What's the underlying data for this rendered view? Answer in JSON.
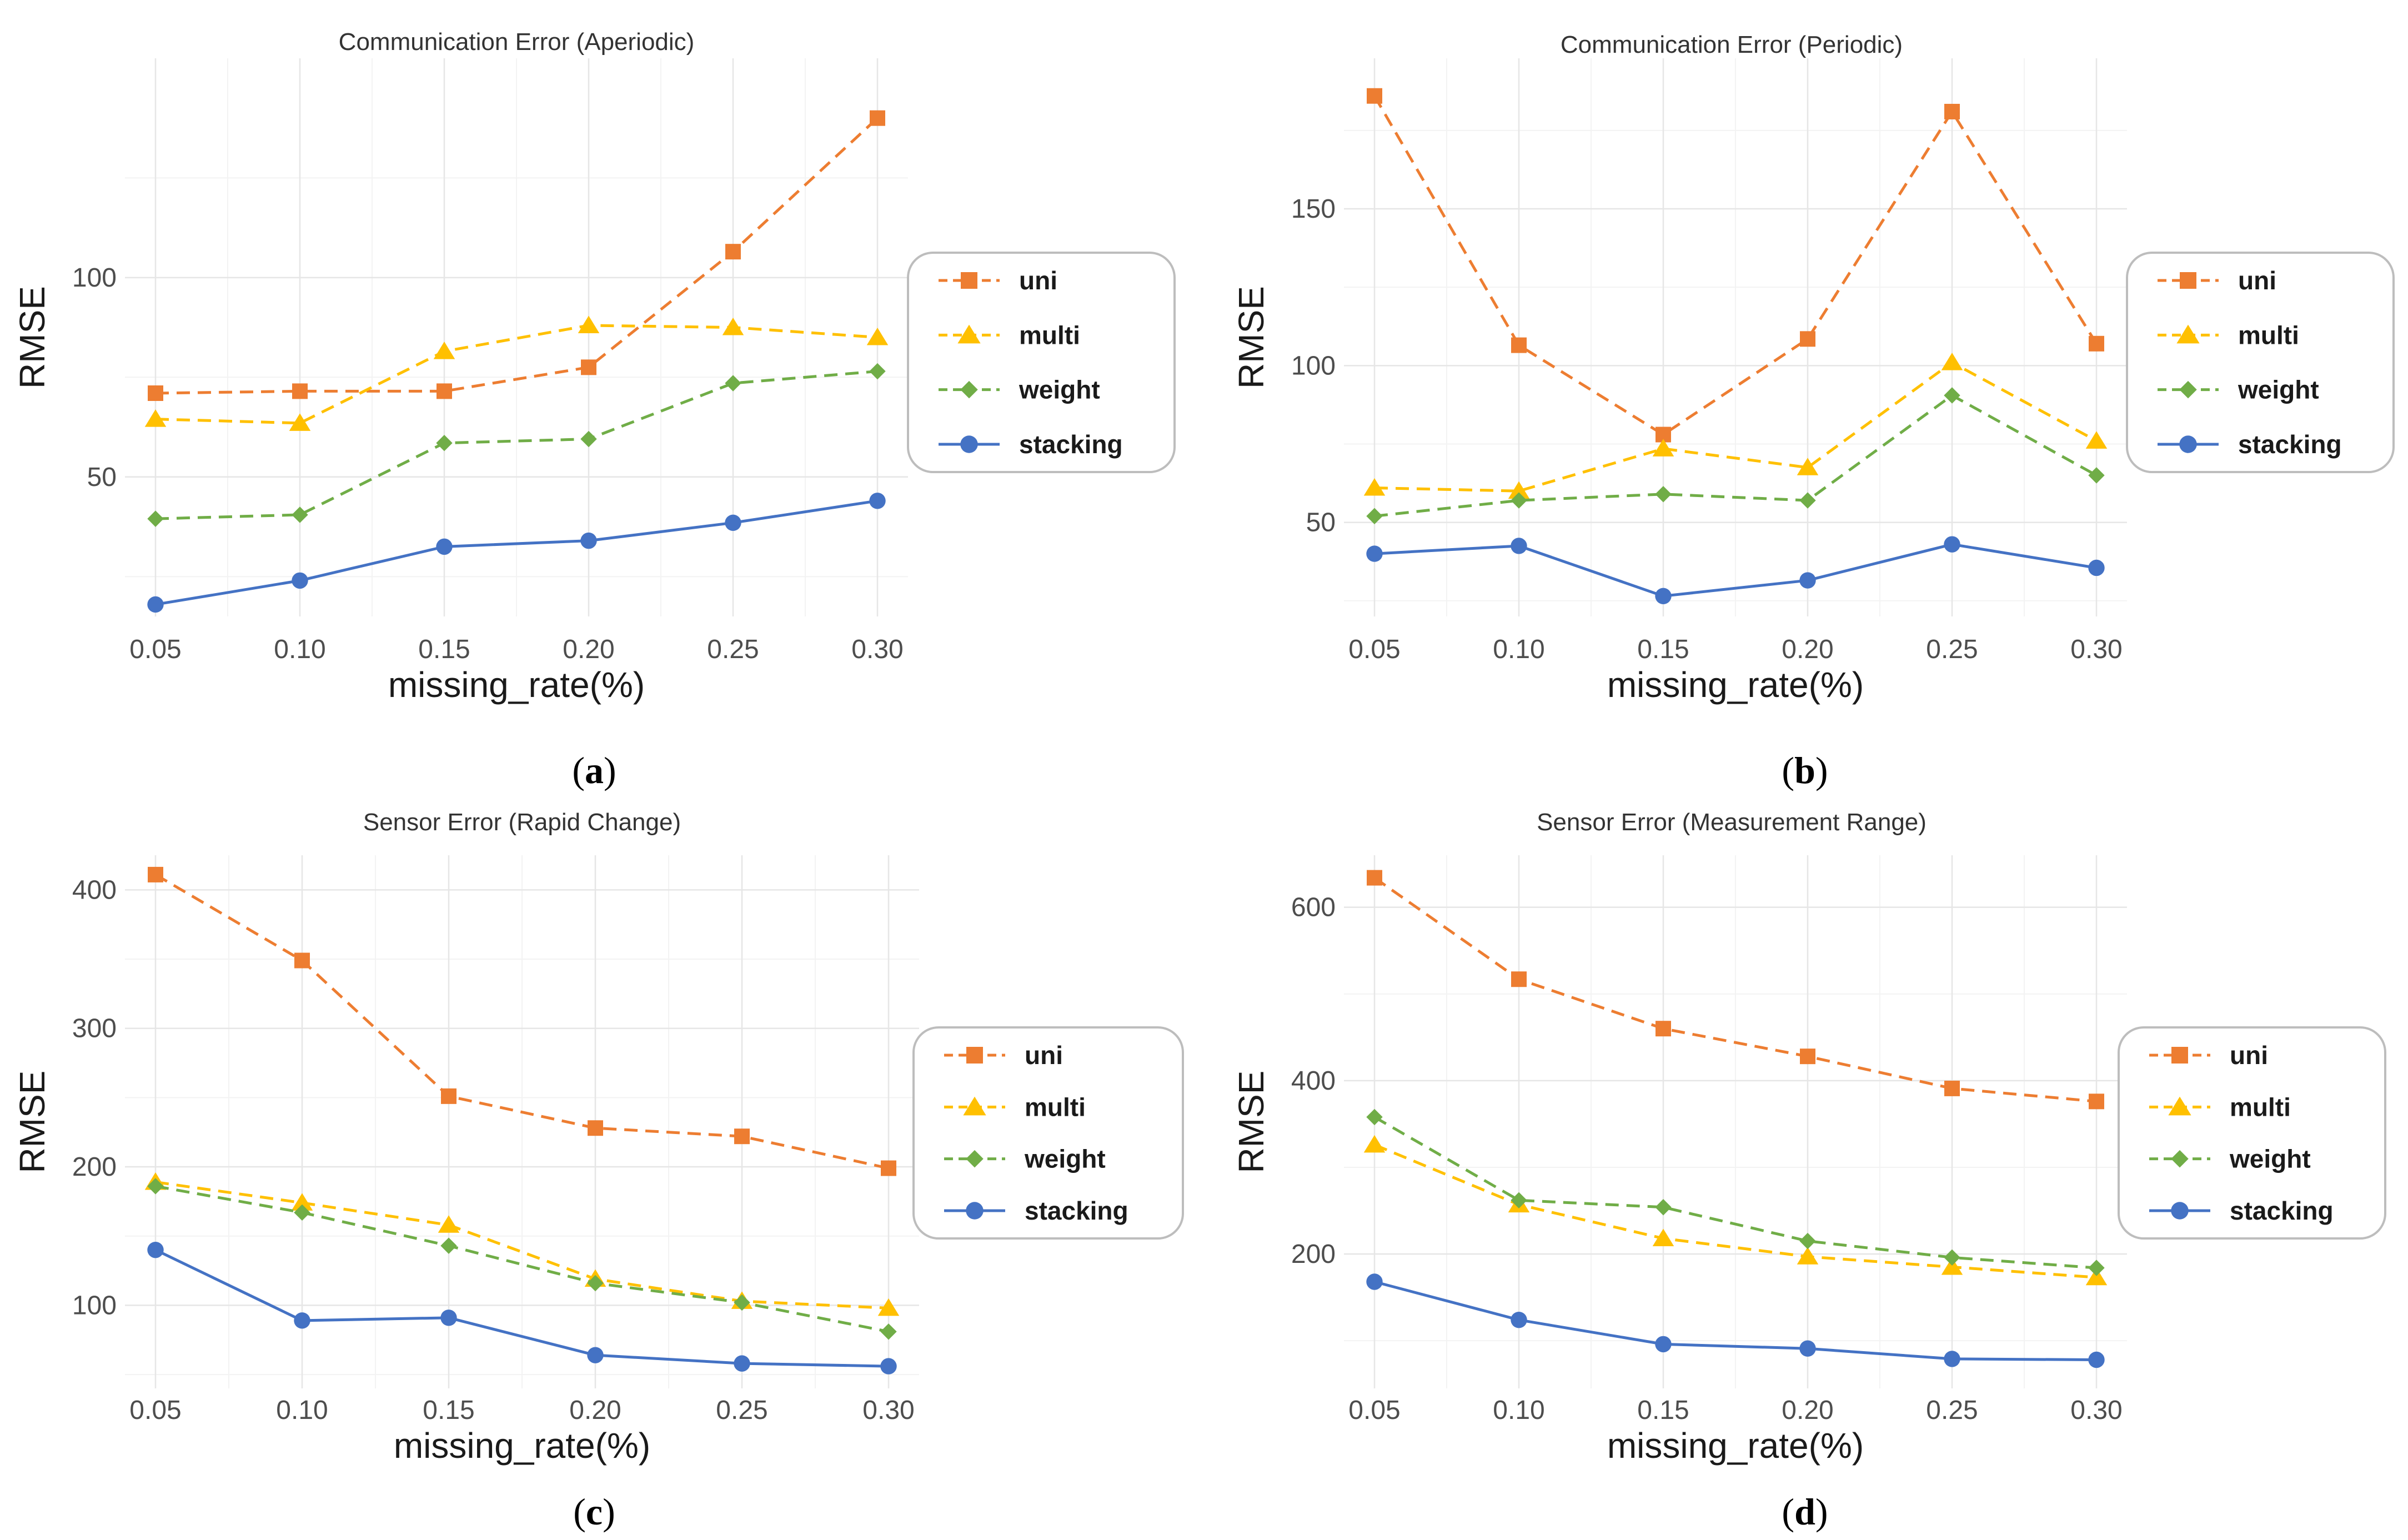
{
  "x_label": "missing_rate(%)",
  "y_label": "RMSE",
  "chart_data": [
    {
      "type": "line",
      "title": "Communication Error (Aperiodic)",
      "caption": "a",
      "categories": [
        "0.05",
        "0.10",
        "0.15",
        "0.20",
        "0.25",
        "0.30"
      ],
      "yticks": [
        50,
        100
      ],
      "ylim": [
        15,
        155
      ],
      "series": [
        {
          "name": "uni",
          "color": "#ED7D31",
          "marker": "square",
          "dash": true,
          "values": [
            71,
            71.5,
            71.5,
            77.5,
            106.5,
            140
          ]
        },
        {
          "name": "multi",
          "color": "#FFC000",
          "marker": "triangle",
          "dash": true,
          "values": [
            64.5,
            63.5,
            81.5,
            88,
            87.5,
            85
          ]
        },
        {
          "name": "weight",
          "color": "#70AD47",
          "marker": "diamond",
          "dash": true,
          "values": [
            39.5,
            40.5,
            58.5,
            59.5,
            73.5,
            76.5
          ]
        },
        {
          "name": "stacking",
          "color": "#4472C4",
          "marker": "circle",
          "dash": false,
          "values": [
            18,
            24,
            32.5,
            34,
            38.5,
            44
          ]
        }
      ]
    },
    {
      "type": "line",
      "title": "Communication Error (Periodic)",
      "caption": "b",
      "categories": [
        "0.05",
        "0.10",
        "0.15",
        "0.20",
        "0.25",
        "0.30"
      ],
      "yticks": [
        50,
        100,
        150
      ],
      "ylim": [
        20,
        198
      ],
      "series": [
        {
          "name": "uni",
          "color": "#ED7D31",
          "marker": "square",
          "dash": true,
          "values": [
            186,
            106.5,
            78,
            108.5,
            181,
            107
          ]
        },
        {
          "name": "multi",
          "color": "#FFC000",
          "marker": "triangle",
          "dash": true,
          "values": [
            61,
            60,
            73.5,
            67.5,
            101,
            76
          ]
        },
        {
          "name": "weight",
          "color": "#70AD47",
          "marker": "diamond",
          "dash": true,
          "values": [
            52,
            57,
            59,
            57,
            90.5,
            65
          ]
        },
        {
          "name": "stacking",
          "color": "#4472C4",
          "marker": "circle",
          "dash": false,
          "values": [
            40,
            42.5,
            26.5,
            31.5,
            43,
            35.5
          ]
        }
      ]
    },
    {
      "type": "line",
      "title": "Sensor Error (Rapid Change)",
      "caption": "c",
      "categories": [
        "0.05",
        "0.10",
        "0.15",
        "0.20",
        "0.25",
        "0.30"
      ],
      "yticks": [
        100,
        200,
        300,
        400
      ],
      "ylim": [
        40,
        425
      ],
      "series": [
        {
          "name": "uni",
          "color": "#ED7D31",
          "marker": "square",
          "dash": true,
          "values": [
            411,
            349,
            251,
            228,
            222,
            199
          ]
        },
        {
          "name": "multi",
          "color": "#FFC000",
          "marker": "triangle",
          "dash": true,
          "values": [
            189,
            174,
            158,
            119,
            103,
            98
          ]
        },
        {
          "name": "weight",
          "color": "#70AD47",
          "marker": "diamond",
          "dash": true,
          "values": [
            186,
            167,
            143,
            116,
            102,
            81
          ]
        },
        {
          "name": "stacking",
          "color": "#4472C4",
          "marker": "circle",
          "dash": false,
          "values": [
            140,
            89,
            91,
            64,
            58,
            56
          ]
        }
      ]
    },
    {
      "type": "line",
      "title": "Sensor Error (Measurement Range)",
      "caption": "d",
      "categories": [
        "0.05",
        "0.10",
        "0.15",
        "0.20",
        "0.25",
        "0.30"
      ],
      "yticks": [
        200,
        400,
        600
      ],
      "ylim": [
        45,
        660
      ],
      "series": [
        {
          "name": "uni",
          "color": "#ED7D31",
          "marker": "square",
          "dash": true,
          "values": [
            634,
            517,
            460,
            428,
            391,
            376
          ]
        },
        {
          "name": "multi",
          "color": "#FFC000",
          "marker": "triangle",
          "dash": true,
          "values": [
            326,
            257,
            218,
            197,
            185,
            173
          ]
        },
        {
          "name": "weight",
          "color": "#70AD47",
          "marker": "diamond",
          "dash": true,
          "values": [
            358,
            262,
            254,
            215,
            196,
            184
          ]
        },
        {
          "name": "stacking",
          "color": "#4472C4",
          "marker": "circle",
          "dash": false,
          "values": [
            168,
            124,
            96,
            91,
            79,
            78
          ]
        }
      ]
    }
  ]
}
